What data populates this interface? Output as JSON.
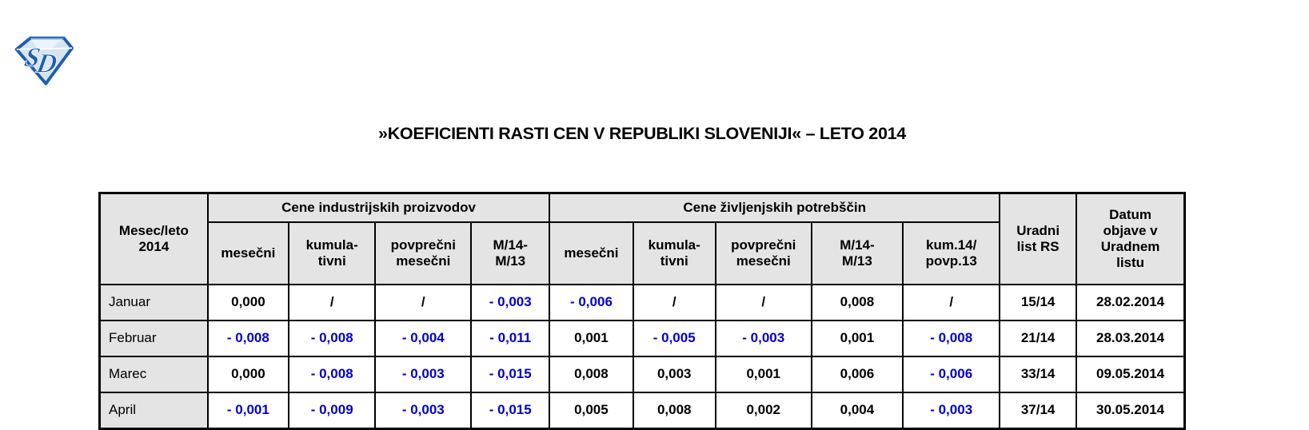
{
  "page": {
    "title": "»KOEFICIENTI RASTI CEN V REPUBLIKI SLOVENIJI« – LETO 2014"
  },
  "logo": {
    "letters": "SD",
    "primary_color": "#1d5fae",
    "light_color": "#d7e4f3"
  },
  "table": {
    "corner_header": "Mesec/leto\n2014",
    "groups": [
      {
        "label": "Cene industrijskih proizvodov",
        "columns": [
          "mesečni",
          "kumula-\ntivni",
          "povprečni\nmesečni",
          "M/14-\nM/13"
        ]
      },
      {
        "label": "Cene življenjskih potrebščin",
        "columns": [
          "mesečni",
          "kumula-\ntivni",
          "povprečni\nmesečni",
          "M/14-\nM/13",
          "kum.14/\npovp.13"
        ]
      }
    ],
    "tail_headers": [
      "Uradni\nlist RS",
      "Datum\nobjave v\nUradnem\nlistu"
    ],
    "colors": {
      "negative": "#0000cc",
      "header_bg": "#e4e4e4",
      "border": "#000000"
    },
    "rows": [
      {
        "month": "Januar",
        "values": [
          "0,000",
          "/",
          "/",
          "- 0,003",
          "- 0,006",
          "/",
          "/",
          "0,008",
          "/"
        ],
        "uradni_list": "15/14",
        "datum": "28.02.2014"
      },
      {
        "month": "Februar",
        "values": [
          "- 0,008",
          "- 0,008",
          "- 0,004",
          "- 0,011",
          "0,001",
          "- 0,005",
          "- 0,003",
          "0,001",
          "- 0,008"
        ],
        "uradni_list": "21/14",
        "datum": "28.03.2014"
      },
      {
        "month": "Marec",
        "values": [
          "0,000",
          "- 0,008",
          "- 0,003",
          "- 0,015",
          "0,008",
          "0,003",
          "0,001",
          "0,006",
          "- 0,006"
        ],
        "uradni_list": "33/14",
        "datum": "09.05.2014"
      },
      {
        "month": "April",
        "values": [
          "- 0,001",
          "- 0,009",
          "- 0,003",
          "- 0,015",
          "0,005",
          "0,008",
          "0,002",
          "0,004",
          "- 0,003"
        ],
        "uradni_list": "37/14",
        "datum": "30.05.2014"
      }
    ]
  }
}
